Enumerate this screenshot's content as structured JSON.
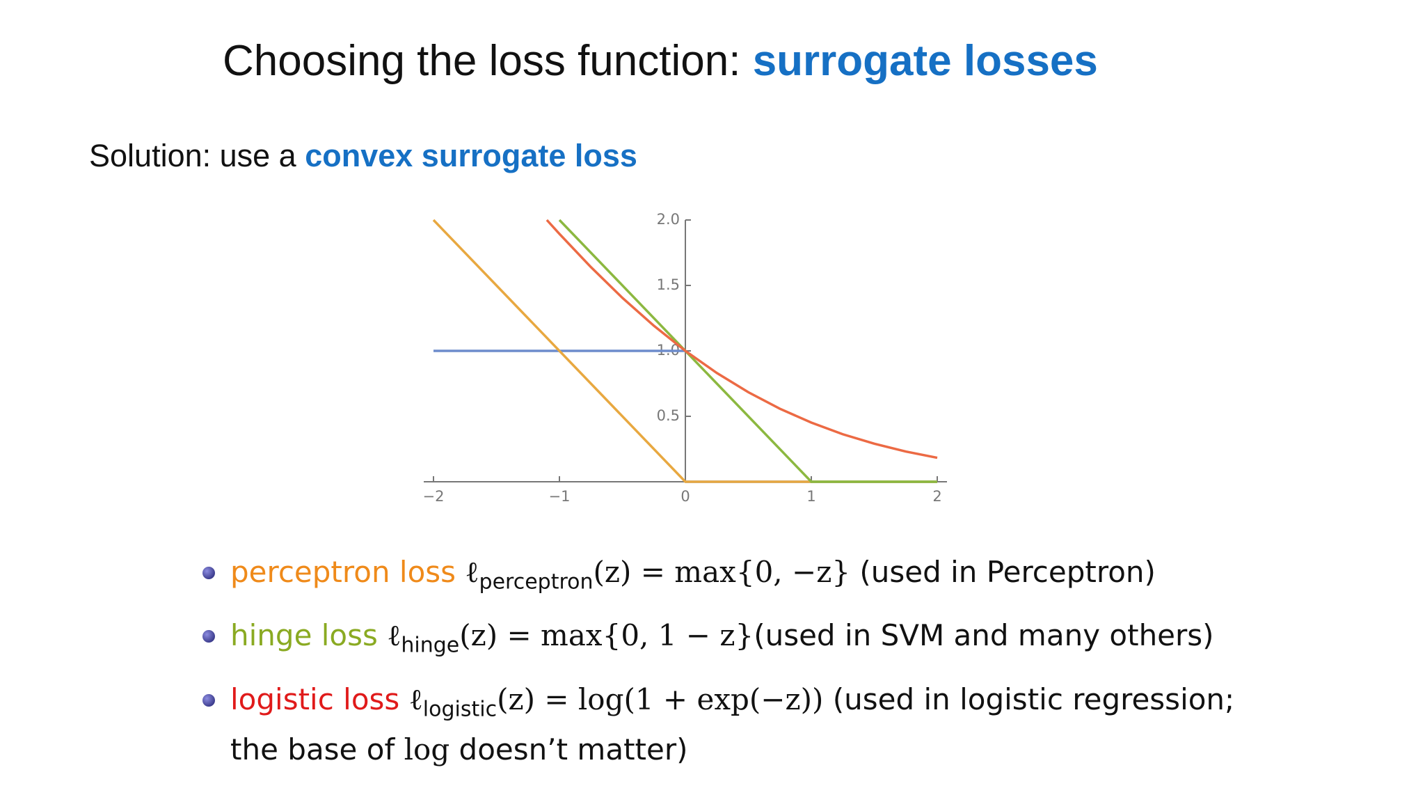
{
  "title": {
    "plain": "Choosing the loss function: ",
    "highlight": "surrogate losses"
  },
  "subtitle": {
    "plain": "Solution: use a ",
    "highlight": "convex surrogate loss"
  },
  "bullets": [
    {
      "name": "perceptron loss",
      "color": "#ef8a1a",
      "ell": "ℓ",
      "subscript": "perceptron",
      "math": "(z) = max{0, −z}",
      "note": " (used in Perceptron)"
    },
    {
      "name": "hinge loss",
      "color": "#8aaa22",
      "ell": "ℓ",
      "subscript": "hinge",
      "math": "(z) = max{0, 1 − z}",
      "note": "(used in SVM and many others)"
    },
    {
      "name": "logistic loss",
      "color": "#e01a1a",
      "ell": "ℓ",
      "subscript": "logistic",
      "math": "(z) = log(1 + exp(−z))",
      "note": " (used in logistic regression;",
      "line2_a": "the base of ",
      "line2_log": "log",
      "line2_b": " doesn’t matter)"
    }
  ],
  "chart_data": {
    "type": "line",
    "xlim": [
      -2,
      2
    ],
    "ylim": [
      0,
      2
    ],
    "xticks": [
      {
        "value": -2,
        "label": "−2"
      },
      {
        "value": -1,
        "label": "−1"
      },
      0,
      1,
      2
    ],
    "yticks": [
      0.5,
      {
        "value": 1,
        "label": "1.0"
      },
      1.5,
      {
        "value": 2,
        "label": "2.0"
      }
    ],
    "series": [
      {
        "color": "#6d8ccc",
        "x": [
          -2,
          0,
          0,
          0,
          2
        ],
        "values": [
          1,
          1,
          null,
          0,
          0
        ]
      },
      {
        "color": "#e8a840",
        "x": [
          -2,
          0,
          2
        ],
        "values": [
          2,
          0,
          0
        ]
      },
      {
        "color": "#8cb840",
        "x": [
          -1,
          1,
          2
        ],
        "values": [
          2,
          0,
          0
        ]
      },
      {
        "color": "#ec6a44",
        "x": [
          -1.1,
          -1,
          -0.75,
          -0.5,
          -0.25,
          0,
          0.25,
          0.5,
          0.75,
          1,
          1.25,
          1.5,
          1.75,
          2
        ],
        "values": [
          2.0,
          1.894,
          1.64,
          1.405,
          1.192,
          1,
          0.831,
          0.684,
          0.558,
          0.452,
          0.363,
          0.291,
          0.231,
          0.183
        ]
      }
    ]
  }
}
